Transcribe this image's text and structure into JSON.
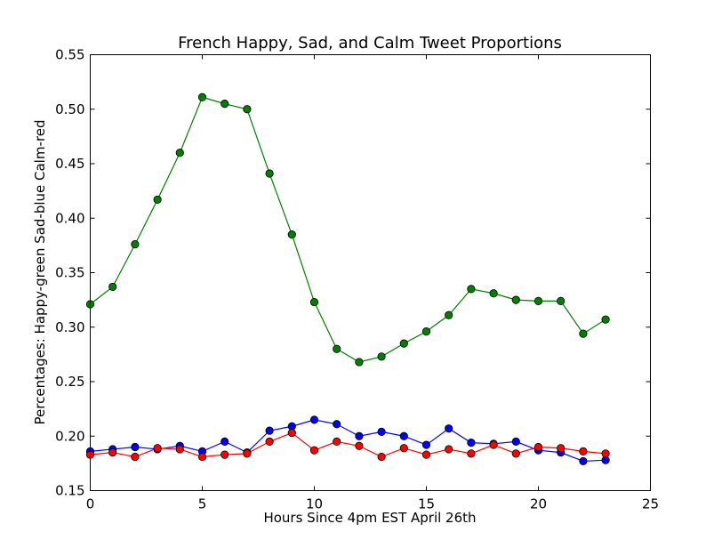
{
  "chart_data": {
    "type": "line",
    "title": "French Happy, Sad, and Calm Tweet Proportions",
    "xlabel": "Hours Since 4pm EST April 26th",
    "ylabel": "Percentages: Happy-green Sad-blue Calm-red",
    "xlim": [
      0,
      25
    ],
    "ylim": [
      0.15,
      0.55
    ],
    "xticks": [
      0,
      5,
      10,
      15,
      20,
      25
    ],
    "xtick_labels": [
      "0",
      "5",
      "10",
      "15",
      "20",
      "25"
    ],
    "yticks": [
      0.15,
      0.2,
      0.25,
      0.3,
      0.35,
      0.4,
      0.45,
      0.5,
      0.55
    ],
    "ytick_labels": [
      "0.15",
      "0.20",
      "0.25",
      "0.30",
      "0.35",
      "0.40",
      "0.45",
      "0.50",
      "0.55"
    ],
    "grid": false,
    "x": [
      0,
      1,
      2,
      3,
      4,
      5,
      6,
      7,
      8,
      9,
      10,
      11,
      12,
      13,
      14,
      15,
      16,
      17,
      18,
      19,
      20,
      21,
      22,
      23
    ],
    "series": [
      {
        "key": "happy",
        "color": "#008000",
        "values": [
          0.321,
          0.337,
          0.376,
          0.417,
          0.46,
          0.511,
          0.505,
          0.5,
          0.441,
          0.385,
          0.323,
          0.28,
          0.268,
          0.273,
          0.285,
          0.296,
          0.311,
          0.335,
          0.331,
          0.325,
          0.324,
          0.324,
          0.294,
          0.307
        ]
      },
      {
        "key": "sad",
        "color": "#0000ff",
        "values": [
          0.186,
          0.188,
          0.19,
          0.188,
          0.191,
          0.186,
          0.195,
          0.185,
          0.205,
          0.209,
          0.215,
          0.211,
          0.2,
          0.204,
          0.2,
          0.192,
          0.207,
          0.194,
          0.193,
          0.195,
          0.187,
          0.185,
          0.177,
          0.178
        ]
      },
      {
        "key": "calm",
        "color": "#ff0000",
        "values": [
          0.183,
          0.185,
          0.181,
          0.189,
          0.188,
          0.181,
          0.183,
          0.184,
          0.195,
          0.203,
          0.187,
          0.195,
          0.191,
          0.181,
          0.189,
          0.183,
          0.188,
          0.184,
          0.192,
          0.184,
          0.19,
          0.189,
          0.186,
          0.184
        ]
      }
    ]
  }
}
